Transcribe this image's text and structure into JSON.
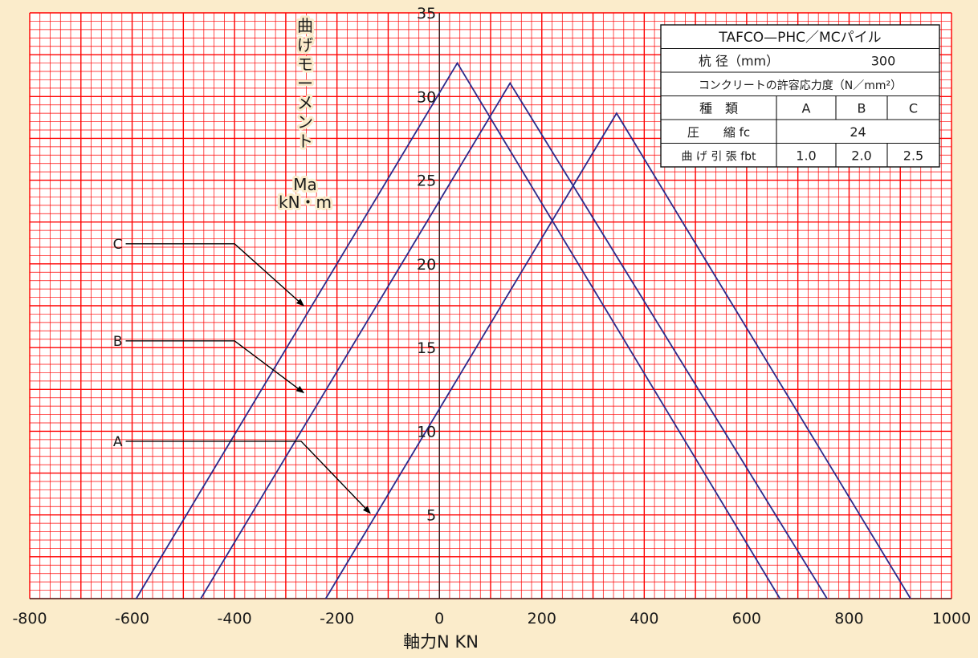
{
  "chart_data": {
    "type": "line",
    "title": "",
    "xlabel": "軸力N KN",
    "ylabel": [
      "曲",
      "げ",
      "モ",
      "ー",
      "メ",
      "ン",
      "ト",
      "Ma",
      "kN・m"
    ],
    "xlim": [
      -800,
      1000
    ],
    "ylim": [
      0,
      35
    ],
    "x_ticks": [
      -800,
      -600,
      -400,
      -200,
      0,
      200,
      400,
      600,
      800,
      1000
    ],
    "y_ticks": [
      5,
      10,
      15,
      20,
      25,
      30,
      35
    ],
    "grid": true,
    "series": [
      {
        "name": "A",
        "x": [
          -222,
          346,
          920
        ],
        "y": [
          0,
          29,
          0
        ]
      },
      {
        "name": "B",
        "x": [
          -466,
          138,
          757
        ],
        "y": [
          0,
          30.8,
          0
        ]
      },
      {
        "name": "C",
        "x": [
          -592,
          35,
          665
        ],
        "y": [
          0,
          32,
          0
        ]
      }
    ],
    "annotations": [
      {
        "label": "C",
        "at": [
          -600,
          21.2
        ],
        "bend": [
          -400,
          21.2
        ],
        "arrow_to": [
          -265,
          17.5
        ]
      },
      {
        "label": "B",
        "at": [
          -600,
          15.4
        ],
        "bend": [
          -400,
          15.4
        ],
        "arrow_to": [
          -265,
          12.3
        ]
      },
      {
        "label": "A",
        "at": [
          -600,
          9.4
        ],
        "bend": [
          -270,
          9.4
        ],
        "arrow_to": [
          -135,
          5.1
        ]
      }
    ],
    "colors": {
      "grid": "#ff0000",
      "series": "#2b2a8c",
      "annotation": "#000000",
      "plot_bg": "#ffffff"
    },
    "legend_table": {
      "title": "TAFCO—PHC／MCパイル",
      "rows": [
        [
          "杭 径（mm）",
          "300"
        ],
        [
          "コンクリートの許容応力度（N／mm²）"
        ],
        [
          "種　類",
          "A",
          "B",
          "C"
        ],
        [
          "圧　　縮 fc",
          "24"
        ],
        [
          "曲 げ 引 張 fbt",
          "1.0",
          "2.0",
          "2.5"
        ]
      ]
    }
  }
}
